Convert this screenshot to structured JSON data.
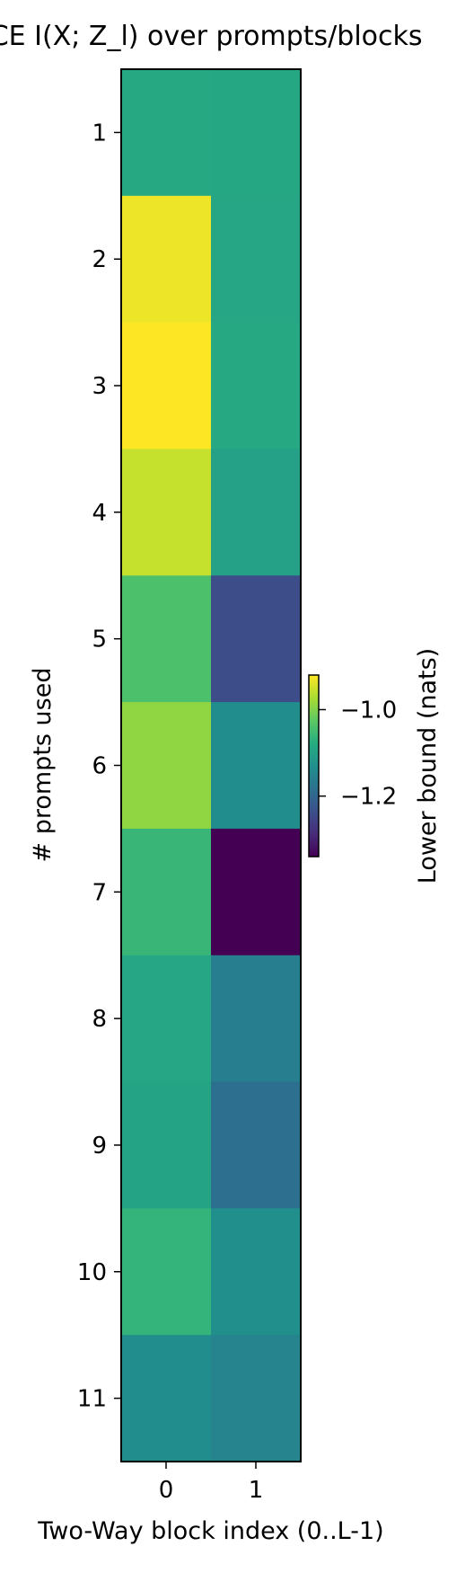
{
  "chart_data": {
    "type": "heatmap",
    "title": "InfoNCE  I(X; Z_l) over prompts/blocks",
    "xlabel": "Two-Way block index (0..L-1)",
    "ylabel": "# prompts used",
    "x_categories": [
      "0",
      "1"
    ],
    "y_categories": [
      "1",
      "2",
      "3",
      "4",
      "5",
      "6",
      "7",
      "8",
      "9",
      "10",
      "11"
    ],
    "values": [
      [
        -1.085,
        -1.088
      ],
      [
        -0.93,
        -1.09
      ],
      [
        -0.92,
        -1.087
      ],
      [
        -0.955,
        -1.1
      ],
      [
        -1.04,
        -1.24
      ],
      [
        -0.99,
        -1.135
      ],
      [
        -1.06,
        -1.34
      ],
      [
        -1.09,
        -1.16
      ],
      [
        -1.095,
        -1.185
      ],
      [
        -1.065,
        -1.13
      ],
      [
        -1.135,
        -1.15
      ]
    ],
    "colormap": "viridis",
    "colorbar": {
      "label": "Lower bound (nats)",
      "range": [
        -1.34,
        -0.92
      ],
      "ticks": [
        -1.0,
        -1.2
      ],
      "tick_labels": [
        "−1.0",
        "−1.2"
      ]
    }
  }
}
